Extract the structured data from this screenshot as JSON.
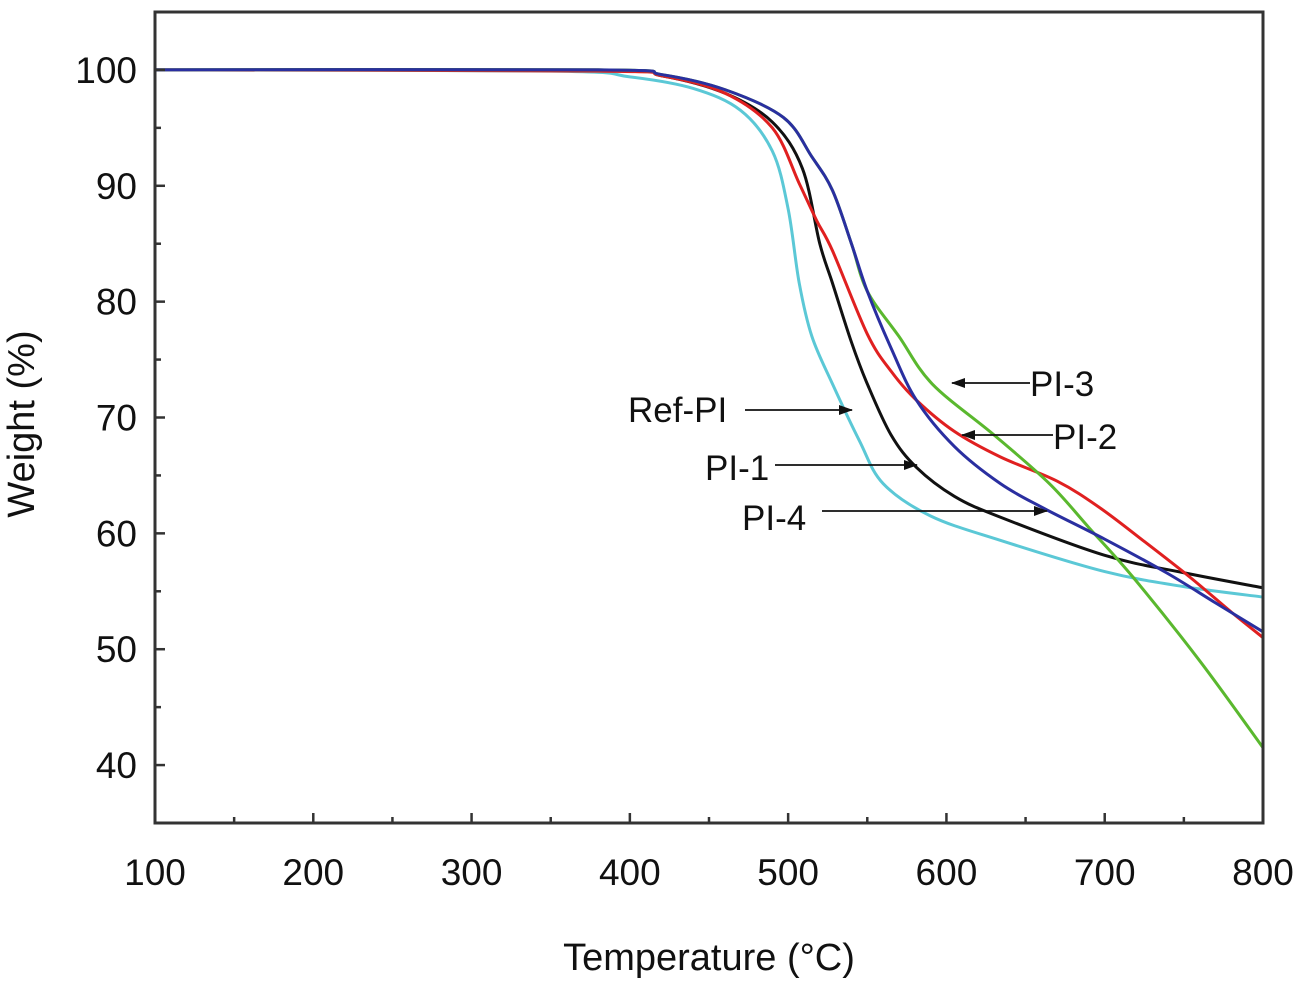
{
  "chart_data": {
    "type": "line",
    "title": "",
    "xlabel": "Temperature (°C)",
    "ylabel": "Weight (%)",
    "xlim": [
      100,
      800
    ],
    "ylim": [
      35,
      105
    ],
    "x_ticks": [
      100,
      200,
      300,
      400,
      500,
      600,
      700,
      800
    ],
    "y_ticks": [
      40,
      50,
      60,
      70,
      80,
      90,
      100
    ],
    "grid": false,
    "legend": "none (inline arrow annotations)",
    "series": [
      {
        "name": "Ref-PI",
        "color": "#5bc8d6",
        "points": [
          [
            100,
            100
          ],
          [
            350,
            99.9
          ],
          [
            400,
            99.4
          ],
          [
            440,
            98.4
          ],
          [
            470,
            96.5
          ],
          [
            490,
            93
          ],
          [
            500,
            88
          ],
          [
            507,
            81.6
          ],
          [
            515,
            77
          ],
          [
            528,
            72.9
          ],
          [
            545,
            68
          ],
          [
            560,
            64.3
          ],
          [
            590,
            61.5
          ],
          [
            634,
            59.4
          ],
          [
            700,
            56.7
          ],
          [
            750,
            55.4
          ],
          [
            800,
            54.5
          ]
        ]
      },
      {
        "name": "PI-1",
        "color": "#111111",
        "points": [
          [
            100,
            100
          ],
          [
            380,
            100
          ],
          [
            420,
            99.5
          ],
          [
            460,
            98
          ],
          [
            490,
            95.5
          ],
          [
            509,
            91.5
          ],
          [
            520,
            85
          ],
          [
            528,
            81.6
          ],
          [
            540,
            76.5
          ],
          [
            550,
            72.9
          ],
          [
            565,
            68.5
          ],
          [
            581,
            65.7
          ],
          [
            605,
            63.2
          ],
          [
            634,
            61.4
          ],
          [
            700,
            58.1
          ],
          [
            750,
            56.6
          ],
          [
            800,
            55.3
          ]
        ]
      },
      {
        "name": "PI-2",
        "color": "#e02020",
        "points": [
          [
            100,
            100
          ],
          [
            380,
            99.9
          ],
          [
            420,
            99.5
          ],
          [
            460,
            98
          ],
          [
            490,
            95
          ],
          [
            507,
            90.2
          ],
          [
            518,
            87
          ],
          [
            528,
            84.4
          ],
          [
            550,
            77.2
          ],
          [
            565,
            74
          ],
          [
            581,
            71.5
          ],
          [
            605,
            68.8
          ],
          [
            634,
            66.6
          ],
          [
            670,
            64.5
          ],
          [
            697,
            62.2
          ],
          [
            725,
            59.3
          ],
          [
            754,
            56.2
          ],
          [
            780,
            53.2
          ],
          [
            800,
            51
          ]
        ]
      },
      {
        "name": "PI-3",
        "color": "#5ab82e",
        "points": [
          [
            100,
            100
          ],
          [
            380,
            100
          ],
          [
            420,
            99.6
          ],
          [
            460,
            98.3
          ],
          [
            497,
            95.9
          ],
          [
            515,
            92.5
          ],
          [
            528,
            89.6
          ],
          [
            540,
            85
          ],
          [
            550,
            80.9
          ],
          [
            570,
            77
          ],
          [
            591,
            72.9
          ],
          [
            630,
            68.5
          ],
          [
            665,
            64.3
          ],
          [
            690,
            60.5
          ],
          [
            718,
            56.2
          ],
          [
            760,
            49
          ],
          [
            800,
            41.5
          ]
        ]
      },
      {
        "name": "PI-4",
        "color": "#2a2fa0",
        "points": [
          [
            100,
            100
          ],
          [
            380,
            100
          ],
          [
            420,
            99.6
          ],
          [
            460,
            98.3
          ],
          [
            497,
            95.9
          ],
          [
            515,
            92.5
          ],
          [
            528,
            89.6
          ],
          [
            540,
            85
          ],
          [
            550,
            80.9
          ],
          [
            565,
            76
          ],
          [
            581,
            71.5
          ],
          [
            605,
            67.5
          ],
          [
            634,
            64.3
          ],
          [
            661,
            62.2
          ],
          [
            700,
            59.5
          ],
          [
            739,
            56.6
          ],
          [
            770,
            54
          ],
          [
            800,
            51.5
          ]
        ]
      }
    ],
    "annotations": [
      {
        "text": "Ref-PI",
        "points_to": "Ref-PI"
      },
      {
        "text": "PI-1",
        "points_to": "PI-1"
      },
      {
        "text": "PI-4",
        "points_to": "PI-4"
      },
      {
        "text": "PI-3",
        "points_to": "PI-3"
      },
      {
        "text": "PI-2",
        "points_to": "PI-2"
      }
    ]
  }
}
